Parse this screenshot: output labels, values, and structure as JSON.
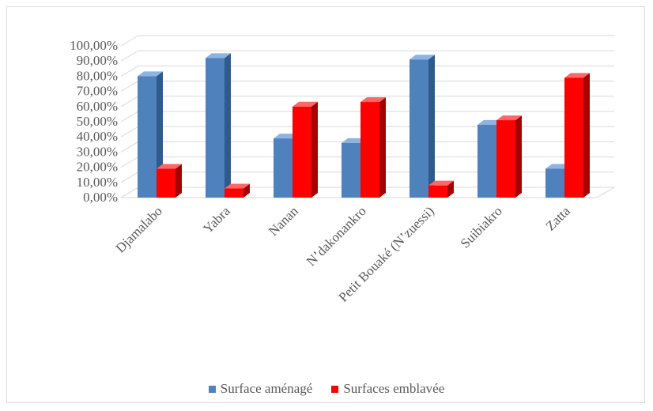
{
  "chart_data": {
    "type": "bar",
    "categories": [
      "Djamalabo",
      "Yabra",
      "Nanan",
      "N’dakonankro",
      "Petit Bouaké (N’zuessi)",
      "Suibiakro",
      "Zatta"
    ],
    "series": [
      {
        "name": "Surface aménagé",
        "values": [
          0.8,
          0.92,
          0.39,
          0.36,
          0.91,
          0.48,
          0.19
        ],
        "color": "#4f81bd",
        "side_color": "#2e5a8c",
        "top_color": "#8db3e2"
      },
      {
        "name": "Surfaces emblavée",
        "values": [
          0.19,
          0.06,
          0.6,
          0.63,
          0.08,
          0.51,
          0.79
        ],
        "color": "#ff0000",
        "side_color": "#a50000",
        "top_color": "#ff6666"
      }
    ],
    "ylim": [
      0,
      1.0
    ],
    "yticks": [
      "0,00%",
      "10,00%",
      "20,00%",
      "30,00%",
      "40,00%",
      "50,00%",
      "60,00%",
      "70,00%",
      "80,00%",
      "90,00%",
      "100,00%"
    ],
    "grid": true,
    "legend_position": "bottom",
    "three_d": true
  }
}
